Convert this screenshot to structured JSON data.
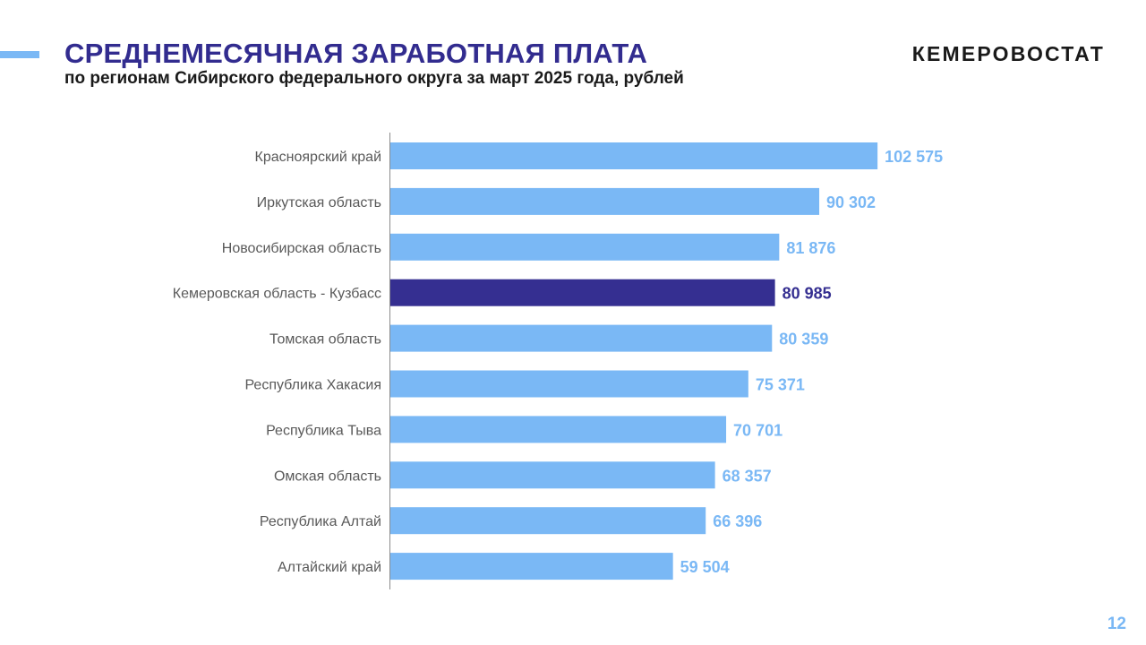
{
  "header": {
    "title": "СРЕДНЕМЕСЯЧНАЯ ЗАРАБОТНАЯ ПЛАТА",
    "subtitle": "по регионам Сибирского федерального округа за март 2025 года, рублей",
    "brand": "КЕМЕРОВОСТАТ"
  },
  "footer": {
    "page_number": "12"
  },
  "colors": {
    "bar_default": "#7ab8f5",
    "bar_highlight": "#352f91",
    "title": "#322c8f",
    "accent": "#7ab8f5"
  },
  "chart_data": {
    "type": "bar",
    "orientation": "horizontal",
    "categories": [
      "Красноярский край",
      "Иркутская область",
      "Новосибирская область",
      "Кемеровская область - Кузбасс",
      "Томская область",
      "Республика Хакасия",
      "Республика Тыва",
      "Омская область",
      "Республика Алтай",
      "Алтайский край"
    ],
    "values": [
      102575,
      90302,
      81876,
      80985,
      80359,
      75371,
      70701,
      68357,
      66396,
      59504
    ],
    "value_labels": [
      "102 575",
      "90 302",
      "81 876",
      "80 985",
      "80 359",
      "75 371",
      "70 701",
      "68 357",
      "66 396",
      "59 504"
    ],
    "highlight_index": 3,
    "xlim": [
      0,
      105000
    ],
    "grid": false,
    "legend": "none"
  }
}
